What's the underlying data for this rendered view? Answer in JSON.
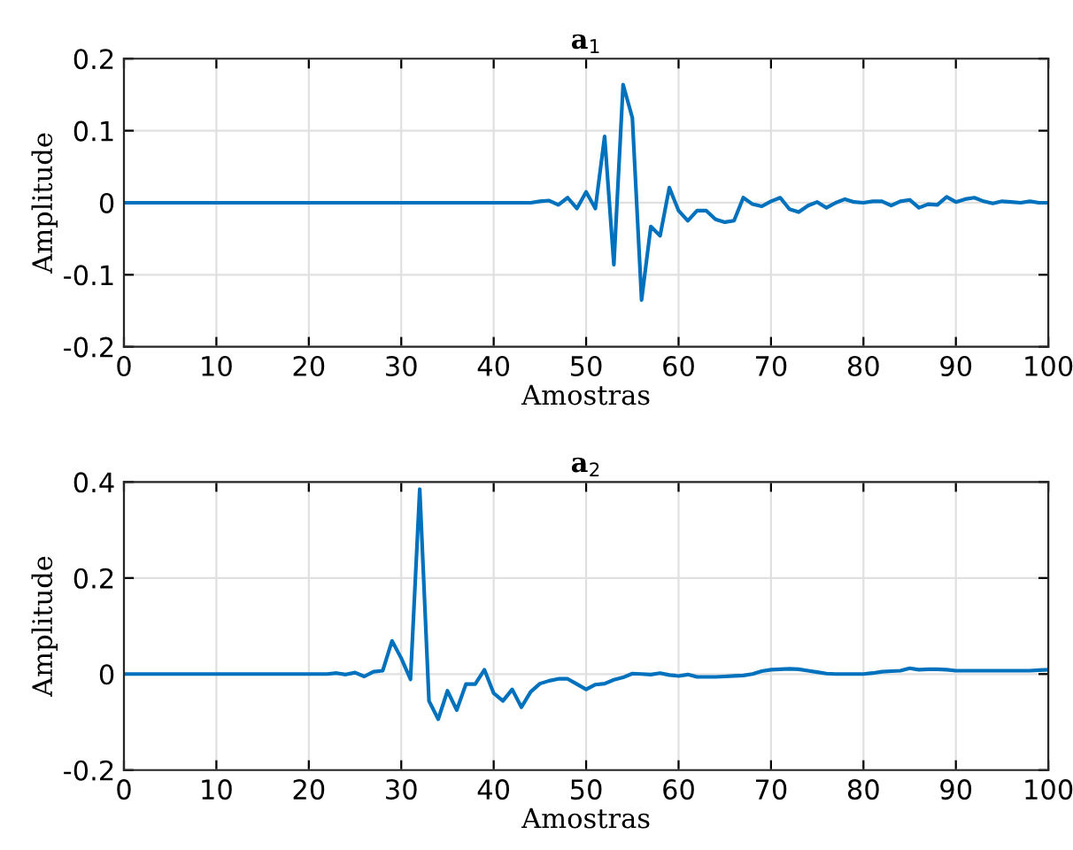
{
  "chart_data": [
    {
      "type": "line",
      "title": "a$_{1}$",
      "xlabel": "Amostras",
      "ylabel": "Amplitude",
      "xlim": [
        0,
        100
      ],
      "ylim": [
        -0.2,
        0.2
      ],
      "xticks": [
        0,
        10,
        20,
        30,
        40,
        50,
        60,
        70,
        80,
        90,
        100
      ],
      "yticks": [
        -0.2,
        -0.1,
        0,
        0.1,
        0.2
      ],
      "grid": true,
      "series": [
        {
          "color": "#0072bd",
          "x": [
            0,
            1,
            2,
            3,
            4,
            5,
            6,
            7,
            8,
            9,
            10,
            11,
            12,
            13,
            14,
            15,
            16,
            17,
            18,
            19,
            20,
            21,
            22,
            23,
            24,
            25,
            26,
            27,
            28,
            29,
            30,
            31,
            32,
            33,
            34,
            35,
            36,
            37,
            38,
            39,
            40,
            41,
            42,
            43,
            44,
            45,
            46,
            47,
            48,
            49,
            50,
            51,
            52,
            53,
            54,
            55,
            56,
            57,
            58,
            59,
            60,
            61,
            62,
            63,
            64,
            65,
            66,
            67,
            68,
            69,
            70,
            71,
            72,
            73,
            74,
            75,
            76,
            77,
            78,
            79,
            80,
            81,
            82,
            83,
            84,
            85,
            86,
            87,
            88,
            89,
            90,
            91,
            92,
            93,
            94,
            95,
            96,
            97,
            98,
            99,
            100
          ],
          "values": [
            0,
            0,
            0,
            0,
            0,
            0,
            0,
            0,
            0,
            0,
            0,
            0,
            0,
            0,
            0,
            0,
            0,
            0,
            0,
            0,
            0,
            0,
            0,
            0,
            0,
            0,
            0,
            0,
            0,
            0,
            0,
            0,
            0,
            0,
            0,
            0,
            0,
            0,
            0,
            0,
            0,
            0,
            0,
            0,
            0,
            0.002,
            0.003,
            -0.003,
            0.007,
            -0.008,
            0.015,
            -0.008,
            0.092,
            -0.086,
            0.164,
            0.118,
            -0.135,
            -0.033,
            -0.046,
            0.021,
            -0.011,
            -0.025,
            -0.011,
            -0.011,
            -0.023,
            -0.027,
            -0.025,
            0.007,
            -0.002,
            -0.005,
            0.002,
            0.007,
            -0.009,
            -0.013,
            -0.004,
            0.001,
            -0.007,
            0,
            0.005,
            0.001,
            0,
            0.002,
            0.002,
            -0.004,
            0.002,
            0.004,
            -0.007,
            -0.002,
            -0.003,
            0.008,
            0.001,
            0.005,
            0.007,
            0.002,
            -0.001,
            0.002,
            0.001,
            0,
            0.002,
            0,
            0
          ]
        }
      ]
    },
    {
      "type": "line",
      "title": "a$_{2}$",
      "xlabel": "Amostras",
      "ylabel": "Amplitude",
      "xlim": [
        0,
        100
      ],
      "ylim": [
        -0.2,
        0.4
      ],
      "xticks": [
        0,
        10,
        20,
        30,
        40,
        50,
        60,
        70,
        80,
        90,
        100
      ],
      "yticks": [
        {
          "value": -0.2,
          "label": "-0.2"
        },
        0,
        0.2,
        0.4
      ],
      "grid": true,
      "series": [
        {
          "color": "#0072bd",
          "x": [
            0,
            1,
            2,
            3,
            4,
            5,
            6,
            7,
            8,
            9,
            10,
            11,
            12,
            13,
            14,
            15,
            16,
            17,
            18,
            19,
            20,
            21,
            22,
            23,
            24,
            25,
            26,
            27,
            28,
            29,
            30,
            31,
            32,
            33,
            34,
            35,
            36,
            37,
            38,
            39,
            40,
            41,
            42,
            43,
            44,
            45,
            46,
            47,
            48,
            49,
            50,
            51,
            52,
            53,
            54,
            55,
            56,
            57,
            58,
            59,
            60,
            61,
            62,
            63,
            64,
            65,
            66,
            67,
            68,
            69,
            70,
            71,
            72,
            73,
            74,
            75,
            76,
            77,
            78,
            79,
            80,
            81,
            82,
            83,
            84,
            85,
            86,
            87,
            88,
            89,
            90,
            91,
            92,
            93,
            94,
            95,
            96,
            97,
            98,
            99,
            100
          ],
          "values": [
            0,
            0,
            0,
            0,
            0,
            0,
            0,
            0,
            0,
            0,
            0,
            0,
            0,
            0,
            0,
            0,
            0,
            0,
            0,
            0,
            0,
            0,
            0,
            0.002,
            -0.001,
            0.003,
            -0.005,
            0.005,
            0.007,
            0.069,
            0.033,
            -0.011,
            0.385,
            -0.056,
            -0.094,
            -0.035,
            -0.075,
            -0.021,
            -0.021,
            0.009,
            -0.04,
            -0.056,
            -0.032,
            -0.069,
            -0.037,
            -0.02,
            -0.014,
            -0.01,
            -0.01,
            -0.021,
            -0.032,
            -0.022,
            -0.02,
            -0.012,
            -0.007,
            0.001,
            0,
            -0.001,
            0.002,
            -0.002,
            -0.004,
            -0.001,
            -0.006,
            -0.006,
            -0.006,
            -0.005,
            -0.004,
            -0.003,
            0,
            0.006,
            0.009,
            0.01,
            0.011,
            0.01,
            0.007,
            0.004,
            0.001,
            0,
            0,
            0,
            0,
            0.002,
            0.005,
            0.006,
            0.007,
            0.012,
            0.009,
            0.01,
            0.01,
            0.009,
            0.007,
            0.007,
            0.007,
            0.007,
            0.007,
            0.007,
            0.007,
            0.007,
            0.007,
            0.008,
            0.009
          ]
        }
      ]
    }
  ]
}
